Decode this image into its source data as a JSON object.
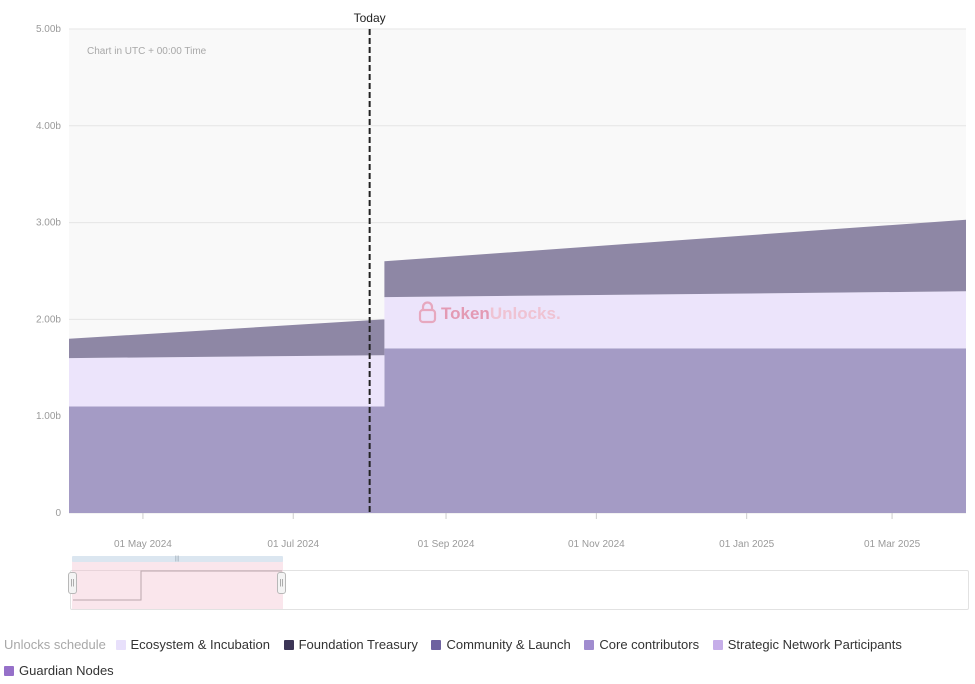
{
  "colors": {
    "plot_bg": "#f9f9f9",
    "grid": "#e6e6e6",
    "bottom_layer": "#a49bc5",
    "middle_layer": "#ece4fb",
    "top_layer": "#8e87a5",
    "today_line": "#222222",
    "watermark": "#e7a8bf"
  },
  "watermark": {
    "brand_a": "Token",
    "brand_b": "Unlocks."
  },
  "legend": {
    "title": "Unlocks schedule",
    "items": [
      {
        "label": "Ecosystem & Incubation",
        "color": "#e8e0fb"
      },
      {
        "label": "Foundation Treasury",
        "color": "#3c3556"
      },
      {
        "label": "Community & Launch",
        "color": "#6e62a0"
      },
      {
        "label": "Core contributors",
        "color": "#a08ccf"
      },
      {
        "label": "Strategic Network Participants",
        "color": "#c6aee9"
      },
      {
        "label": "Guardian Nodes",
        "color": "#9670c9"
      }
    ]
  },
  "chart_data": {
    "type": "area",
    "stacked": true,
    "title": "",
    "xlabel": "",
    "ylabel": "",
    "annotation": "Chart in UTC + 00:00 Time",
    "today_marker": {
      "label": "Today",
      "date": "2024-08-01"
    },
    "x_range": [
      "2024-04-01",
      "2025-03-31"
    ],
    "ylim": [
      0,
      5000000000
    ],
    "y_ticks": [
      {
        "value": 0,
        "label": "0"
      },
      {
        "value": 1000000000,
        "label": "1.00b"
      },
      {
        "value": 2000000000,
        "label": "2.00b"
      },
      {
        "value": 3000000000,
        "label": "3.00b"
      },
      {
        "value": 4000000000,
        "label": "4.00b"
      },
      {
        "value": 5000000000,
        "label": "5.00b"
      }
    ],
    "x_ticks": [
      {
        "date": "2024-05-01",
        "label": "01 May 2024"
      },
      {
        "date": "2024-07-01",
        "label": "01 Jul 2024"
      },
      {
        "date": "2024-09-01",
        "label": "01 Sep 2024"
      },
      {
        "date": "2024-11-01",
        "label": "01 Nov 2024"
      },
      {
        "date": "2025-01-01",
        "label": "01 Jan 2025"
      },
      {
        "date": "2025-03-01",
        "label": "01 Mar 2025"
      }
    ],
    "grid": true,
    "legend_position": "bottom",
    "layers": [
      {
        "color": "#a49bc5",
        "points": [
          {
            "date": "2024-04-01",
            "base": 0,
            "top": 1100000000
          },
          {
            "date": "2024-08-07",
            "base": 0,
            "top": 1100000000
          },
          {
            "date": "2024-08-07",
            "base": 0,
            "top": 1700000000
          },
          {
            "date": "2025-03-31",
            "base": 0,
            "top": 1700000000
          }
        ]
      },
      {
        "color": "#ece4fb",
        "points": [
          {
            "date": "2024-04-01",
            "base": 1100000000,
            "top": 1600000000
          },
          {
            "date": "2024-08-07",
            "base": 1100000000,
            "top": 1630000000
          },
          {
            "date": "2024-08-07",
            "base": 1700000000,
            "top": 2230000000
          },
          {
            "date": "2025-03-31",
            "base": 1700000000,
            "top": 2290000000
          }
        ]
      },
      {
        "color": "#8e87a5",
        "points": [
          {
            "date": "2024-04-01",
            "base": 1600000000,
            "top": 1800000000
          },
          {
            "date": "2024-08-07",
            "base": 1630000000,
            "top": 2000000000
          },
          {
            "date": "2024-08-07",
            "base": 2230000000,
            "top": 2600000000
          },
          {
            "date": "2025-03-31",
            "base": 2290000000,
            "top": 3030000000
          }
        ]
      }
    ]
  }
}
